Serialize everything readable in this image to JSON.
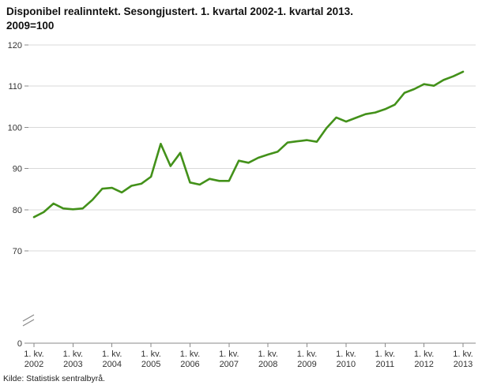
{
  "page": {
    "title_line1": "Disponibel realinntekt. Sesongjustert. 1. kvartal 2002-1. kvartal 2013.",
    "title_line2": "2009=100",
    "source": "Kilde: Statistisk sentralbyrå."
  },
  "colors": {
    "series_green": "#43911a",
    "gridline": "#d9d9d9",
    "axis": "#8a8a8a",
    "label_text": "#333333"
  },
  "chart_data": {
    "type": "line",
    "title": "Disponibel realinntekt. Sesongjustert. 1. kvartal 2002-1. kvartal 2013. 2009=100",
    "x_tick_prefix": "1. kv.",
    "x_years": [
      "2002",
      "2003",
      "2004",
      "2005",
      "2006",
      "2007",
      "2008",
      "2009",
      "2010",
      "2011",
      "2012",
      "2013"
    ],
    "x_frequency": "quarterly",
    "x_start": "1. kv. 2002",
    "x_end": "1. kv. 2013",
    "y_ticks": [
      120,
      110,
      100,
      90,
      80,
      70,
      0
    ],
    "ylim": [
      0,
      120
    ],
    "y_axis_break": true,
    "grid": "horizontal",
    "legend": "none",
    "series": [
      {
        "name": "Disponibel realinntekt, sesongjustert (2009=100)",
        "color": "#43911a",
        "values": [
          78.2,
          79.4,
          81.5,
          80.3,
          80.1,
          80.3,
          82.4,
          85.1,
          85.3,
          84.2,
          85.8,
          86.3,
          88.0,
          96.0,
          90.6,
          93.8,
          86.6,
          86.1,
          87.5,
          87.0,
          87.0,
          91.9,
          91.4,
          92.6,
          93.4,
          94.1,
          96.3,
          96.6,
          96.9,
          96.5,
          99.8,
          102.4,
          101.4,
          102.3,
          103.2,
          103.6,
          104.4,
          105.5,
          108.4,
          109.3,
          110.5,
          110.1,
          111.5,
          112.4,
          113.5
        ]
      }
    ]
  }
}
